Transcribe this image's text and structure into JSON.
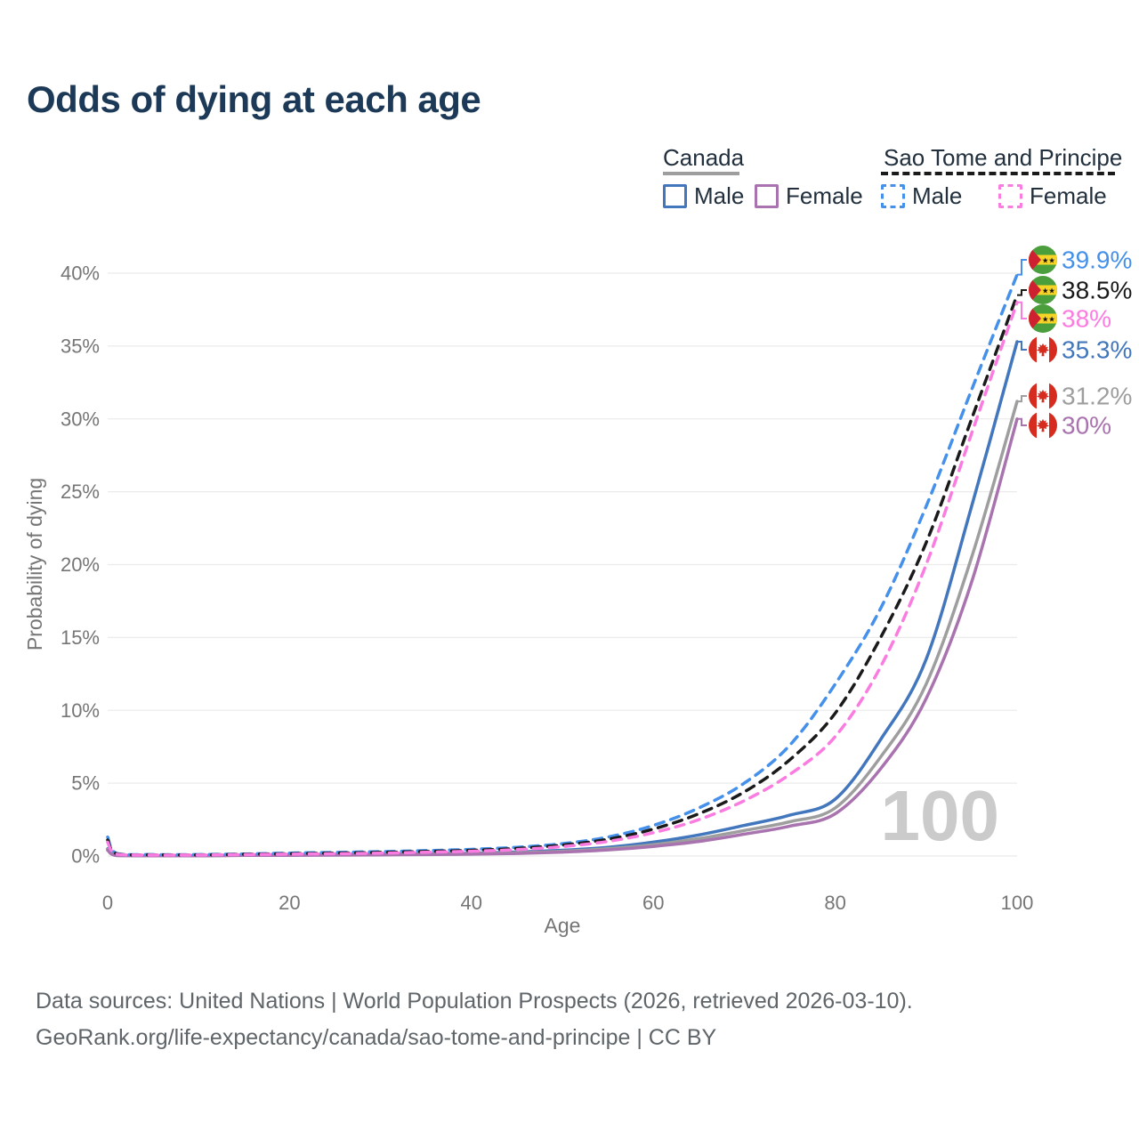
{
  "title": "Odds of dying at each age",
  "colors": {
    "canada_male": "#4276bd",
    "canada_female": "#a873ae",
    "canada_total": "#9e9e9e",
    "stp_male": "#4490ea",
    "stp_female": "#fb7ce0",
    "stp_total": "#1a1a1a",
    "grid": "#ebebeb",
    "axis_text": "#767676",
    "title_text": "#1c3a57",
    "watermark": "#cbcbcb"
  },
  "legend": {
    "groups": [
      {
        "name": "Canada",
        "style": "solid",
        "color_key": "canada_total",
        "items": [
          {
            "label": "Male",
            "color_key": "canada_male",
            "dash": false
          },
          {
            "label": "Female",
            "color_key": "canada_female",
            "dash": false
          }
        ]
      },
      {
        "name": "Sao Tome and Principe",
        "style": "dashed",
        "color_key": "stp_total",
        "items": [
          {
            "label": "Male",
            "color_key": "stp_male",
            "dash": true
          },
          {
            "label": "Female",
            "color_key": "stp_female",
            "dash": true
          }
        ]
      }
    ]
  },
  "chart_data": {
    "type": "line",
    "title": "Odds of dying at each age",
    "xlabel": "Age",
    "ylabel": "Probability of dying",
    "xlim": [
      0,
      100
    ],
    "ylim": [
      0,
      40
    ],
    "grid": "horizontal-only",
    "age_watermark": "100",
    "xticks": [
      {
        "value": 0,
        "label": "0"
      },
      {
        "value": 20,
        "label": "20"
      },
      {
        "value": 40,
        "label": "40"
      },
      {
        "value": 60,
        "label": "60"
      },
      {
        "value": 80,
        "label": "80"
      },
      {
        "value": 100,
        "label": "100"
      }
    ],
    "yticks": [
      {
        "value": 0,
        "label": "0%"
      },
      {
        "value": 5,
        "label": "5%"
      },
      {
        "value": 10,
        "label": "10%"
      },
      {
        "value": 15,
        "label": "15%"
      },
      {
        "value": 20,
        "label": "20%"
      },
      {
        "value": 25,
        "label": "25%"
      },
      {
        "value": 30,
        "label": "30%"
      },
      {
        "value": 35,
        "label": "35%"
      },
      {
        "value": 40,
        "label": "40%"
      }
    ],
    "x": [
      0,
      1,
      5,
      10,
      15,
      20,
      25,
      30,
      35,
      40,
      45,
      50,
      55,
      60,
      65,
      70,
      75,
      80,
      85,
      90,
      95,
      100
    ],
    "series": [
      {
        "id": "canada-male",
        "name": "Canada Male",
        "country": "Canada",
        "sex": "Male",
        "color_key": "canada_male",
        "dash": false,
        "values": [
          0.5,
          0.04,
          0.01,
          0.01,
          0.06,
          0.09,
          0.11,
          0.13,
          0.16,
          0.2,
          0.28,
          0.4,
          0.6,
          0.95,
          1.45,
          2.1,
          2.8,
          3.9,
          8.0,
          13.5,
          24.0,
          35.3
        ]
      },
      {
        "id": "canada-total",
        "name": "Canada (both sexes)",
        "country": "Canada",
        "sex": "Both",
        "color_key": "canada_total",
        "dash": false,
        "values": [
          0.45,
          0.035,
          0.01,
          0.01,
          0.05,
          0.07,
          0.09,
          0.11,
          0.13,
          0.17,
          0.23,
          0.33,
          0.5,
          0.78,
          1.2,
          1.75,
          2.35,
          3.3,
          6.8,
          11.8,
          20.5,
          31.2
        ]
      },
      {
        "id": "canada-female",
        "name": "Canada Female",
        "country": "Canada",
        "sex": "Female",
        "color_key": "canada_female",
        "dash": false,
        "values": [
          0.4,
          0.03,
          0.01,
          0.01,
          0.04,
          0.05,
          0.06,
          0.08,
          0.1,
          0.13,
          0.18,
          0.27,
          0.42,
          0.66,
          1.0,
          1.5,
          2.05,
          2.9,
          6.0,
          10.8,
          18.8,
          30.0
        ]
      },
      {
        "id": "stp-male",
        "name": "Sao Tome and Principe Male",
        "country": "Sao Tome and Principe",
        "sex": "Male",
        "color_key": "stp_male",
        "dash": true,
        "values": [
          1.3,
          0.18,
          0.1,
          0.1,
          0.14,
          0.2,
          0.25,
          0.3,
          0.37,
          0.46,
          0.6,
          0.85,
          1.3,
          2.1,
          3.3,
          5.0,
          7.6,
          11.8,
          17.0,
          24.0,
          32.0,
          39.9
        ]
      },
      {
        "id": "stp-total",
        "name": "Sao Tome and Principe (both sexes)",
        "country": "Sao Tome and Principe",
        "sex": "Both",
        "color_key": "stp_total",
        "dash": true,
        "values": [
          1.1,
          0.15,
          0.08,
          0.08,
          0.12,
          0.16,
          0.2,
          0.25,
          0.31,
          0.39,
          0.52,
          0.75,
          1.15,
          1.85,
          2.9,
          4.4,
          6.6,
          9.8,
          15.0,
          21.5,
          30.0,
          38.5
        ]
      },
      {
        "id": "stp-female",
        "name": "Sao Tome and Principe Female",
        "country": "Sao Tome and Principe",
        "sex": "Female",
        "color_key": "stp_female",
        "dash": true,
        "values": [
          0.95,
          0.13,
          0.07,
          0.07,
          0.1,
          0.13,
          0.16,
          0.2,
          0.26,
          0.33,
          0.44,
          0.65,
          1.0,
          1.6,
          2.5,
          3.8,
          5.6,
          8.2,
          13.0,
          20.0,
          29.0,
          38.0
        ]
      }
    ],
    "end_labels": [
      {
        "series": "stp-male",
        "text": "39.9%",
        "flag": "sao-tome-and-principe",
        "value": 39.9
      },
      {
        "series": "stp-total",
        "text": "38.5%",
        "flag": "sao-tome-and-principe",
        "value": 38.5
      },
      {
        "series": "stp-female",
        "text": "38%",
        "flag": "sao-tome-and-principe",
        "value": 38
      },
      {
        "series": "canada-male",
        "text": "35.3%",
        "flag": "canada",
        "value": 35.3
      },
      {
        "series": "canada-total",
        "text": "31.2%",
        "flag": "canada",
        "value": 31.2
      },
      {
        "series": "canada-female",
        "text": "30%",
        "flag": "canada",
        "value": 30
      }
    ]
  },
  "footer": {
    "line1": "Data sources: United Nations | World Population Prospects (2026, retrieved 2026-03-10).",
    "line2": "GeoRank.org/life-expectancy/canada/sao-tome-and-principe | CC BY"
  }
}
